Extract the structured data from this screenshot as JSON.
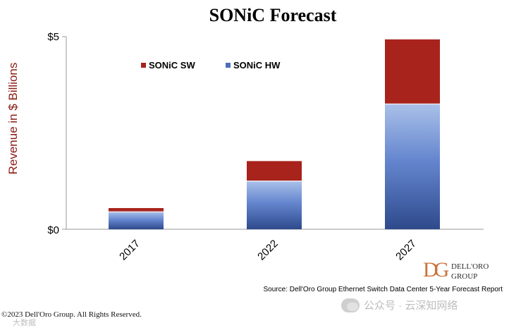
{
  "chart_data": {
    "type": "bar",
    "stacked": true,
    "title": "SONiC Forecast",
    "ylabel": "Revenue in $ Billions",
    "xlabel": "",
    "categories": [
      "2017",
      "2022",
      "2027"
    ],
    "ylim": [
      0,
      5
    ],
    "yticks": [
      "$0",
      "$5"
    ],
    "series": [
      {
        "name": "SONiC HW",
        "values": [
          0.45,
          1.25,
          3.25
        ],
        "color": "#4a6fb8"
      },
      {
        "name": "SONiC SW",
        "values": [
          0.1,
          0.52,
          1.68
        ],
        "color": "#a8231c"
      }
    ],
    "legend_position": "top-left",
    "grid": false
  },
  "source": "Source: Dell'Oro Group Ethernet Switch Data Center 5-Year Forecast Report",
  "logo": {
    "line1": "DELL'ORO",
    "line2": "GROUP",
    "mark": "DG"
  },
  "footer": "©2023 Dell'Oro Group. All Rights Reserved.",
  "watermark": "公众号 · 云深知网络",
  "watermark_overlay": "大数据",
  "colors": {
    "ylabel": "#8b1a12",
    "sw": "#a8231c",
    "hw_top": "#9fb7e3",
    "hw_bottom": "#2f4c8f"
  }
}
